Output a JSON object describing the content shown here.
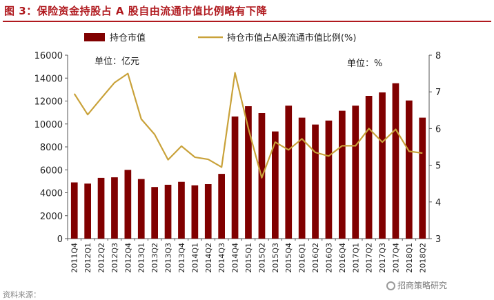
{
  "figure_title": "图 3：保险资金持股占 A 股自由流通市值比例略有下降",
  "footer_text": "资料来源：",
  "brand": "招商策略研究",
  "colors": {
    "bar": "#800000",
    "line": "#c9a23a",
    "title": "#b0191e"
  },
  "chart_data": {
    "type": "bar+line",
    "categories": [
      "2011Q4",
      "2012Q1",
      "2012Q2",
      "2012Q3",
      "2012Q4",
      "2013Q1",
      "2013Q2",
      "2013Q3",
      "2013Q4",
      "2014Q1",
      "2014Q2",
      "2014Q3",
      "2014Q4",
      "2015Q1",
      "2015Q2",
      "2015Q3",
      "2015Q4",
      "2016Q1",
      "2016Q2",
      "2016Q3",
      "2016Q4",
      "2017Q1",
      "2017Q2",
      "2017Q3",
      "2017Q4",
      "2018Q1",
      "2018Q2"
    ],
    "series": [
      {
        "name": "持仓市值",
        "type": "bar",
        "axis": "left",
        "values": [
          4900,
          4800,
          5300,
          5350,
          6000,
          5200,
          4500,
          4700,
          4950,
          4650,
          4750,
          5650,
          10650,
          11550,
          10950,
          9350,
          11600,
          10550,
          9950,
          10300,
          11150,
          11600,
          12450,
          12750,
          13550,
          12050,
          10550
        ]
      },
      {
        "name": "持仓市值占A股流通市值比例(%)",
        "type": "line",
        "axis": "right",
        "values": [
          6.95,
          6.38,
          6.82,
          7.25,
          7.5,
          6.26,
          5.84,
          5.15,
          5.52,
          5.22,
          5.16,
          4.95,
          7.52,
          6.0,
          4.66,
          5.63,
          5.42,
          5.72,
          5.35,
          5.25,
          5.53,
          5.53,
          6.0,
          5.63,
          5.98,
          5.38,
          5.33
        ]
      }
    ],
    "y_left": {
      "range": [
        0,
        16000
      ],
      "ticks": [
        0,
        2000,
        4000,
        6000,
        8000,
        10000,
        12000,
        14000,
        16000
      ],
      "unit_label": "单位：亿元"
    },
    "y_right": {
      "range": [
        3,
        8
      ],
      "ticks": [
        3,
        4,
        5,
        6,
        7,
        8
      ],
      "unit_label": "单位：%"
    },
    "legend_position": "top"
  }
}
